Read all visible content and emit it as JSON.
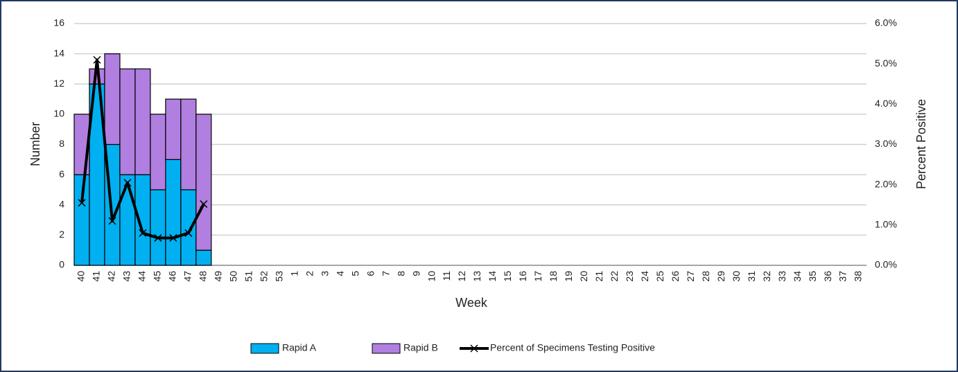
{
  "chart_data": {
    "type": "bar",
    "categories": [
      "40",
      "41",
      "42",
      "43",
      "44",
      "45",
      "46",
      "47",
      "48",
      "49",
      "50",
      "51",
      "52",
      "53",
      "1",
      "2",
      "3",
      "4",
      "5",
      "6",
      "7",
      "8",
      "9",
      "10",
      "11",
      "12",
      "13",
      "14",
      "15",
      "16",
      "17",
      "18",
      "19",
      "20",
      "21",
      "22",
      "23",
      "24",
      "25",
      "26",
      "27",
      "28",
      "29",
      "30",
      "31",
      "32",
      "33",
      "34",
      "35",
      "36",
      "37",
      "38"
    ],
    "series": [
      {
        "name": "Rapid A",
        "type": "bar",
        "color": "#00b0f0",
        "values": [
          6,
          12,
          8,
          6,
          6,
          5,
          7,
          5,
          1,
          null,
          null,
          null,
          null,
          null,
          null,
          null,
          null,
          null,
          null,
          null,
          null,
          null,
          null,
          null,
          null,
          null,
          null,
          null,
          null,
          null,
          null,
          null,
          null,
          null,
          null,
          null,
          null,
          null,
          null,
          null,
          null,
          null,
          null,
          null,
          null,
          null,
          null,
          null,
          null,
          null,
          null,
          null
        ]
      },
      {
        "name": "Rapid B",
        "type": "bar",
        "color": "#b07fe0",
        "values": [
          4,
          1,
          6,
          7,
          7,
          5,
          4,
          6,
          9,
          null,
          null,
          null,
          null,
          null,
          null,
          null,
          null,
          null,
          null,
          null,
          null,
          null,
          null,
          null,
          null,
          null,
          null,
          null,
          null,
          null,
          null,
          null,
          null,
          null,
          null,
          null,
          null,
          null,
          null,
          null,
          null,
          null,
          null,
          null,
          null,
          null,
          null,
          null,
          null,
          null,
          null,
          null
        ]
      },
      {
        "name": "Percent of Specimens Testing Positive",
        "type": "line",
        "axis": "y2",
        "color": "#000000",
        "values": [
          1.55,
          5.1,
          1.1,
          2.05,
          0.8,
          0.68,
          0.68,
          0.8,
          1.52,
          null,
          null,
          null,
          null,
          null,
          null,
          null,
          null,
          null,
          null,
          null,
          null,
          null,
          null,
          null,
          null,
          null,
          null,
          null,
          null,
          null,
          null,
          null,
          null,
          null,
          null,
          null,
          null,
          null,
          null,
          null,
          null,
          null,
          null,
          null,
          null,
          null,
          null,
          null,
          null,
          null,
          null,
          null
        ]
      }
    ],
    "x_label": "Week",
    "y_label": "Number",
    "y2_label": "Percent Positive",
    "ylim": [
      0,
      16
    ],
    "yticks": [
      0,
      2,
      4,
      6,
      8,
      10,
      12,
      14,
      16
    ],
    "y2lim": [
      0,
      6
    ],
    "y2ticks": [
      {
        "value": 0,
        "label": "0.0%"
      },
      {
        "value": 1,
        "label": "1.0%"
      },
      {
        "value": 2,
        "label": "2.0%"
      },
      {
        "value": 3,
        "label": "3.0%"
      },
      {
        "value": 4,
        "label": "4.0%"
      },
      {
        "value": 5,
        "label": "5.0%"
      },
      {
        "value": 6,
        "label": "6.0%"
      }
    ],
    "grid": true,
    "stacked": true,
    "legend": "bottom"
  }
}
